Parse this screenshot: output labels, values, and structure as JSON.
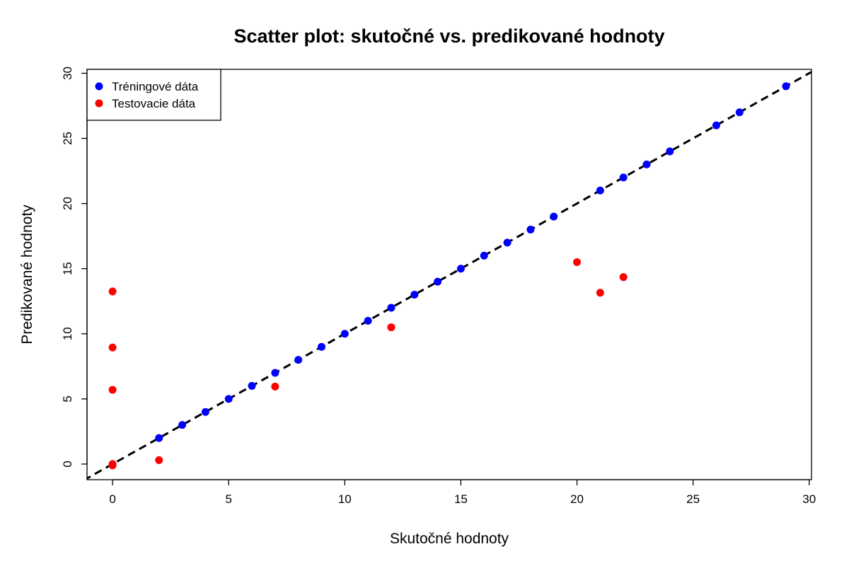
{
  "chart_data": {
    "type": "scatter",
    "title": "Scatter plot: skutočné vs. predikované hodnoty",
    "xlabel": "Skutočné hodnoty",
    "ylabel": "Predikované hodnoty",
    "xlim": [
      -1.1,
      30.1
    ],
    "ylim": [
      -1.2,
      30.3
    ],
    "xticks": [
      0,
      5,
      10,
      15,
      20,
      25,
      30
    ],
    "yticks": [
      0,
      5,
      10,
      15,
      20,
      25,
      30
    ],
    "grid": false,
    "legend_position": "top-left",
    "reference_line": {
      "type": "identity",
      "style": "dashed",
      "color": "#000000"
    },
    "series": [
      {
        "name": "Tréningové dáta",
        "color": "#0000ff",
        "x": [
          2,
          3,
          4,
          5,
          6,
          7,
          8,
          9,
          10,
          11,
          12,
          13,
          14,
          15,
          16,
          17,
          18,
          19,
          21,
          22,
          23,
          24,
          26,
          27,
          29
        ],
        "y": [
          2,
          3,
          4,
          5,
          6,
          7,
          8,
          9,
          10,
          11,
          12,
          13,
          14,
          15,
          16,
          17,
          18,
          19,
          21,
          22,
          23,
          24,
          26,
          27,
          29
        ]
      },
      {
        "name": "Testovacie dáta",
        "color": "#ff0000",
        "x": [
          0,
          0,
          0,
          0,
          0,
          2,
          7,
          12,
          20,
          21,
          22
        ],
        "y": [
          13.25,
          8.95,
          5.7,
          0.0,
          -0.1,
          0.3,
          5.95,
          10.5,
          15.5,
          13.15,
          14.35
        ]
      }
    ]
  }
}
